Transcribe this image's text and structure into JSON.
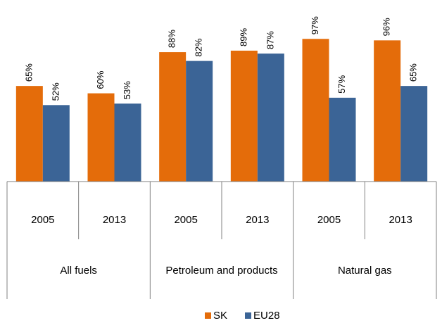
{
  "chart_data": {
    "type": "bar",
    "categories": [
      "2005",
      "2013",
      "2005",
      "2013",
      "2005",
      "2013"
    ],
    "groups": [
      "All fuels",
      "Petroleum and products",
      "Natural gas"
    ],
    "series": [
      {
        "name": "SK",
        "color": "#e46c0a",
        "values": [
          65,
          60,
          88,
          89,
          97,
          96
        ],
        "value_labels": [
          "65%",
          "60%",
          "88%",
          "89%",
          "97%",
          "96%"
        ]
      },
      {
        "name": "EU28",
        "color": "#3b6496",
        "values": [
          52,
          53,
          82,
          87,
          57,
          65
        ],
        "value_labels": [
          "52%",
          "53%",
          "82%",
          "87%",
          "57%",
          "65%"
        ]
      }
    ],
    "ylim": [
      0,
      100
    ]
  }
}
